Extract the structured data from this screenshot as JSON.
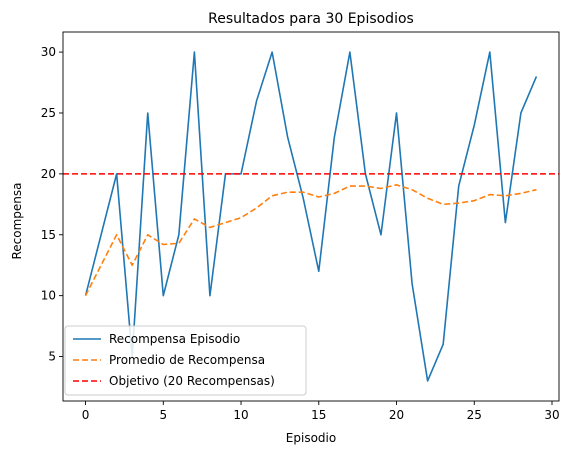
{
  "chart_data": {
    "type": "line",
    "title": "Resultados para 30 Episodios",
    "xlabel": "Episodio",
    "ylabel": "Recompensa",
    "xlim": [
      -1.45,
      30.45
    ],
    "ylim": [
      1.35,
      31.65
    ],
    "xticks": [
      0,
      5,
      10,
      15,
      20,
      25,
      30
    ],
    "yticks": [
      5,
      10,
      15,
      20,
      25,
      30
    ],
    "grid": false,
    "legend_position": "lower-left",
    "x": [
      0,
      1,
      2,
      3,
      4,
      5,
      6,
      7,
      8,
      9,
      10,
      11,
      12,
      13,
      14,
      15,
      16,
      17,
      18,
      19,
      20,
      21,
      22,
      23,
      24,
      25,
      26,
      27,
      28,
      29
    ],
    "series": [
      {
        "name": "Recompensa Episodio",
        "style": "solid",
        "color": "#1f77b4",
        "values": [
          10,
          15,
          20,
          5,
          25,
          10,
          15,
          30,
          10,
          20,
          20,
          26,
          30,
          23,
          18,
          12,
          23,
          30,
          20,
          15,
          25,
          11,
          3,
          6,
          19,
          24,
          30,
          16,
          25,
          28
        ]
      },
      {
        "name": "Promedio de Recompensa",
        "style": "dashed",
        "color": "#ff7f0e",
        "values": [
          10,
          12.5,
          15,
          12.5,
          15,
          14.2,
          14.3,
          16.3,
          15.6,
          16,
          16.4,
          17.2,
          18.2,
          18.5,
          18.5,
          18.1,
          18.4,
          19,
          19,
          18.8,
          19.1,
          18.7,
          18.0,
          17.5,
          17.6,
          17.8,
          18.3,
          18.2,
          18.4,
          18.7
        ]
      },
      {
        "name": "Objetivo (20 Recompensas)",
        "style": "dashed",
        "color": "#ff0000",
        "type": "hline",
        "value": 20
      }
    ]
  }
}
